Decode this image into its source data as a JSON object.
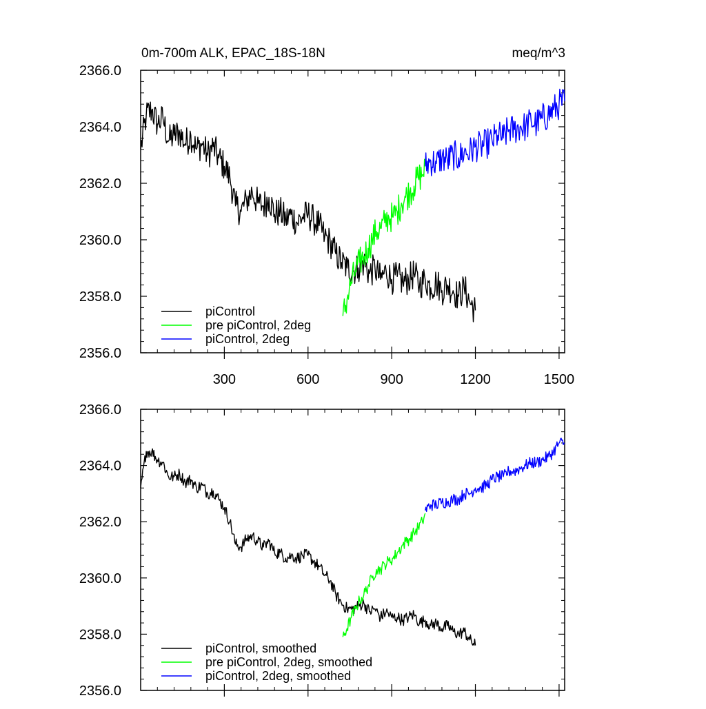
{
  "chart_data": [
    {
      "type": "line",
      "title_left": "0m-700m ALK, EPAC_18S-18N",
      "title_right": "meq/m^3",
      "xlim": [
        0,
        1520
      ],
      "ylim": [
        2356,
        2366
      ],
      "x_ticks": [
        300,
        600,
        900,
        1200,
        1500
      ],
      "x_tick_labels": [
        "300",
        "600",
        "900",
        "1200",
        "1500"
      ],
      "y_ticks": [
        2356,
        2358,
        2360,
        2362,
        2364,
        2366
      ],
      "y_tick_labels": [
        "2356.0",
        "2358.0",
        "2360.0",
        "2362.0",
        "2364.0",
        "2366.0"
      ],
      "legend_position": "bottom-left",
      "series": [
        {
          "name": "piControl",
          "color": "#000000",
          "x": [
            0,
            20,
            40,
            60,
            80,
            100,
            120,
            140,
            160,
            180,
            200,
            220,
            240,
            260,
            280,
            300,
            320,
            340,
            360,
            380,
            400,
            420,
            440,
            460,
            480,
            500,
            520,
            540,
            560,
            580,
            600,
            620,
            640,
            660,
            680,
            700,
            720,
            740,
            760,
            780,
            800,
            820,
            840,
            860,
            880,
            900,
            920,
            940,
            960,
            980,
            1000,
            1020,
            1040,
            1060,
            1080,
            1100,
            1120,
            1140,
            1160,
            1180,
            1200
          ],
          "y": [
            2363.2,
            2364.4,
            2364.6,
            2364.1,
            2364.3,
            2363.5,
            2363.7,
            2363.8,
            2363.4,
            2363.7,
            2363.2,
            2363.4,
            2363.0,
            2363.3,
            2362.9,
            2362.6,
            2362.2,
            2361.2,
            2361.0,
            2361.4,
            2361.7,
            2361.3,
            2361.2,
            2361.5,
            2360.9,
            2361.0,
            2360.7,
            2360.9,
            2360.6,
            2360.8,
            2360.9,
            2360.7,
            2360.5,
            2360.1,
            2359.9,
            2359.5,
            2359.2,
            2359.0,
            2358.9,
            2359.0,
            2359.2,
            2358.8,
            2359.0,
            2358.6,
            2358.9,
            2358.6,
            2358.7,
            2358.5,
            2358.6,
            2358.8,
            2358.4,
            2358.6,
            2358.3,
            2358.5,
            2358.2,
            2358.4,
            2358.2,
            2358.0,
            2358.3,
            2357.8,
            2357.5
          ]
        },
        {
          "name": "pre piControl, 2deg",
          "color": "#00ff00",
          "x": [
            725,
            740,
            755,
            770,
            785,
            800,
            815,
            830,
            845,
            860,
            875,
            890,
            905,
            920,
            935,
            950,
            965,
            980,
            995,
            1010,
            1020
          ],
          "y": [
            2357.3,
            2357.9,
            2358.5,
            2358.9,
            2359.2,
            2359.4,
            2359.7,
            2360.0,
            2360.3,
            2360.4,
            2360.6,
            2360.8,
            2360.8,
            2361.0,
            2361.3,
            2361.5,
            2361.7,
            2361.9,
            2362.2,
            2362.3,
            2362.6
          ]
        },
        {
          "name": "piControl, 2deg",
          "color": "#0000ff",
          "x": [
            1020,
            1040,
            1060,
            1080,
            1100,
            1120,
            1140,
            1160,
            1180,
            1200,
            1220,
            1240,
            1260,
            1280,
            1300,
            1320,
            1340,
            1360,
            1380,
            1400,
            1420,
            1440,
            1460,
            1480,
            1500,
            1520
          ],
          "y": [
            2362.6,
            2362.8,
            2362.7,
            2362.9,
            2362.8,
            2363.0,
            2362.9,
            2363.1,
            2363.1,
            2363.3,
            2363.3,
            2363.4,
            2363.5,
            2363.7,
            2363.6,
            2363.9,
            2363.9,
            2364.0,
            2364.0,
            2364.2,
            2364.1,
            2364.3,
            2364.4,
            2364.6,
            2364.8,
            2364.9
          ]
        }
      ]
    },
    {
      "type": "line",
      "xlim": [
        0,
        1520
      ],
      "ylim": [
        2356,
        2366
      ],
      "x_ticks": [
        300,
        600,
        900,
        1200,
        1500
      ],
      "y_ticks": [
        2356,
        2358,
        2360,
        2362,
        2364,
        2366
      ],
      "y_tick_labels": [
        "2356.0",
        "2358.0",
        "2360.0",
        "2362.0",
        "2364.0",
        "2366.0"
      ],
      "legend_position": "bottom-left",
      "series": [
        {
          "name": "piControl, smoothed",
          "color": "#000000",
          "x": [
            0,
            20,
            40,
            60,
            80,
            100,
            120,
            140,
            160,
            180,
            200,
            220,
            240,
            260,
            280,
            300,
            320,
            340,
            360,
            380,
            400,
            420,
            440,
            460,
            480,
            500,
            520,
            540,
            560,
            580,
            600,
            620,
            640,
            660,
            680,
            700,
            720,
            740,
            760,
            780,
            800,
            820,
            840,
            860,
            880,
            900,
            920,
            940,
            960,
            980,
            1000,
            1020,
            1040,
            1060,
            1080,
            1100,
            1120,
            1140,
            1160,
            1180,
            1200
          ],
          "y": [
            2363.2,
            2364.5,
            2364.5,
            2364.2,
            2364.1,
            2363.6,
            2363.6,
            2363.7,
            2363.4,
            2363.5,
            2363.2,
            2363.3,
            2363.0,
            2363.1,
            2362.8,
            2362.5,
            2362.0,
            2361.2,
            2361.1,
            2361.4,
            2361.5,
            2361.3,
            2361.1,
            2361.3,
            2360.9,
            2360.9,
            2360.7,
            2360.8,
            2360.7,
            2360.8,
            2360.8,
            2360.6,
            2360.4,
            2360.1,
            2359.9,
            2359.4,
            2359.1,
            2358.9,
            2358.9,
            2359.0,
            2359.1,
            2358.8,
            2358.9,
            2358.6,
            2358.8,
            2358.6,
            2358.6,
            2358.5,
            2358.6,
            2358.7,
            2358.4,
            2358.5,
            2358.3,
            2358.4,
            2358.2,
            2358.3,
            2358.1,
            2358.0,
            2358.1,
            2357.8,
            2357.6
          ]
        },
        {
          "name": "pre piControl, 2deg, smoothed",
          "color": "#00ff00",
          "x": [
            725,
            740,
            755,
            770,
            785,
            800,
            815,
            830,
            845,
            860,
            875,
            890,
            905,
            920,
            935,
            950,
            965,
            980,
            995,
            1010,
            1020
          ],
          "y": [
            2357.9,
            2358.2,
            2358.6,
            2358.9,
            2359.2,
            2359.4,
            2359.7,
            2360.0,
            2360.3,
            2360.3,
            2360.5,
            2360.6,
            2360.7,
            2360.9,
            2361.1,
            2361.3,
            2361.4,
            2361.6,
            2361.8,
            2362.0,
            2362.3
          ]
        },
        {
          "name": "piControl, 2deg, smoothed",
          "color": "#0000ff",
          "x": [
            1020,
            1040,
            1060,
            1080,
            1100,
            1120,
            1140,
            1160,
            1180,
            1200,
            1220,
            1240,
            1260,
            1280,
            1300,
            1320,
            1340,
            1360,
            1380,
            1400,
            1420,
            1440,
            1460,
            1480,
            1500,
            1520
          ],
          "y": [
            2362.4,
            2362.6,
            2362.6,
            2362.7,
            2362.7,
            2362.8,
            2362.8,
            2363.0,
            2363.0,
            2363.2,
            2363.2,
            2363.3,
            2363.5,
            2363.6,
            2363.6,
            2363.8,
            2363.8,
            2363.9,
            2364.0,
            2364.1,
            2364.1,
            2364.2,
            2364.3,
            2364.5,
            2364.8,
            2364.8
          ]
        }
      ]
    }
  ]
}
